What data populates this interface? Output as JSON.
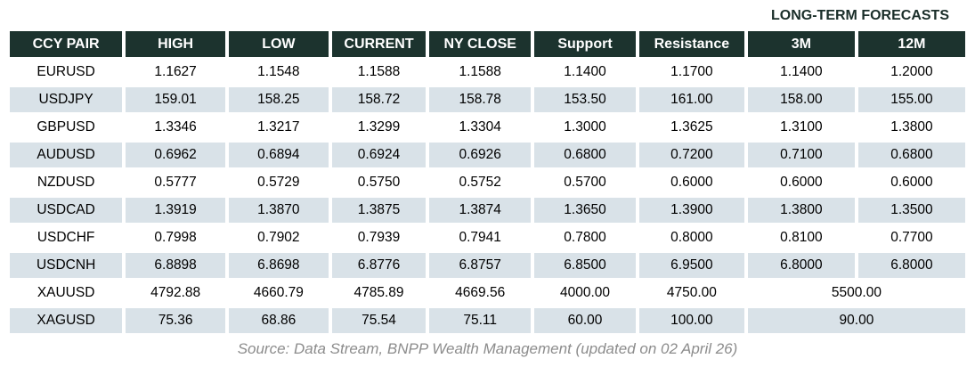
{
  "banner": {
    "label": "LONG-TERM FORECASTS"
  },
  "chart_data": {
    "type": "table",
    "title": "LONG-TERM FORECASTS",
    "columns": [
      "CCY PAIR",
      "HIGH",
      "LOW",
      "CURRENT",
      "NY CLOSE",
      "Support",
      "Resistance",
      "3M",
      "12M"
    ],
    "rows": [
      {
        "pair": "EURUSD",
        "values": [
          "1.1627",
          "1.1548",
          "1.1588",
          "1.1588",
          "1.1400",
          "1.1700",
          "1.1400",
          "1.2000"
        ]
      },
      {
        "pair": "USDJPY",
        "values": [
          "159.01",
          "158.25",
          "158.72",
          "158.78",
          "153.50",
          "161.00",
          "158.00",
          "155.00"
        ]
      },
      {
        "pair": "GBPUSD",
        "values": [
          "1.3346",
          "1.3217",
          "1.3299",
          "1.3304",
          "1.3000",
          "1.3625",
          "1.3100",
          "1.3800"
        ]
      },
      {
        "pair": "AUDUSD",
        "values": [
          "0.6962",
          "0.6894",
          "0.6924",
          "0.6926",
          "0.6800",
          "0.7200",
          "0.7100",
          "0.6800"
        ]
      },
      {
        "pair": "NZDUSD",
        "values": [
          "0.5777",
          "0.5729",
          "0.5750",
          "0.5752",
          "0.5700",
          "0.6000",
          "0.6000",
          "0.6000"
        ]
      },
      {
        "pair": "USDCAD",
        "values": [
          "1.3919",
          "1.3870",
          "1.3875",
          "1.3874",
          "1.3650",
          "1.3900",
          "1.3800",
          "1.3500"
        ]
      },
      {
        "pair": "USDCHF",
        "values": [
          "0.7998",
          "0.7902",
          "0.7939",
          "0.7941",
          "0.7800",
          "0.8000",
          "0.8100",
          "0.7700"
        ]
      },
      {
        "pair": "USDCNH",
        "values": [
          "6.8898",
          "6.8698",
          "6.8776",
          "6.8757",
          "6.8500",
          "6.9500",
          "6.8000",
          "6.8000"
        ]
      },
      {
        "pair": "XAUUSD",
        "values": [
          "4792.88",
          "4660.79",
          "4785.89",
          "4669.56",
          "4000.00",
          "4750.00"
        ],
        "merged_3m_12m": "5500.00"
      },
      {
        "pair": "XAGUSD",
        "values": [
          "75.36",
          "68.86",
          "75.54",
          "75.11",
          "60.00",
          "100.00"
        ],
        "merged_3m_12m": "90.00"
      }
    ],
    "layout_notes": "3M and 12M forecast columns are merged into one centered cell for XAUUSD and XAGUSD rows; rows alternate white and light blue-gray"
  },
  "footer": {
    "source": "Source: Data Stream, BNPP Wealth Management (updated on 02 April 26)"
  },
  "colors": {
    "header_bg": "#1c332e",
    "header_text": "#ffffff",
    "row_alt_bg": "#d9e2e8",
    "banner_text": "#1a2e29",
    "source_text": "#8c8c8c"
  }
}
